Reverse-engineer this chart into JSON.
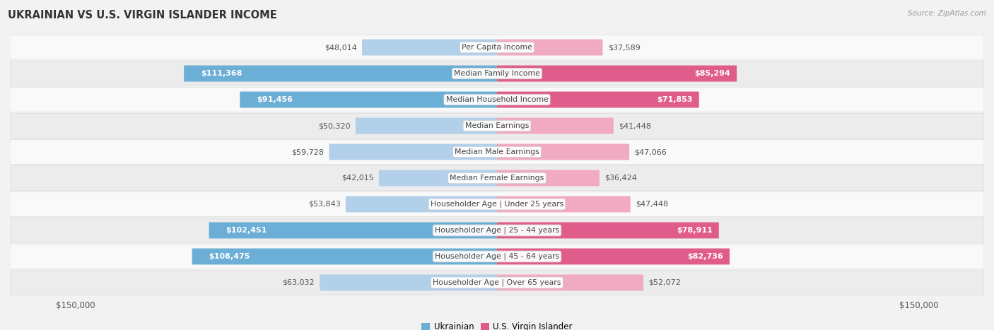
{
  "title": "UKRAINIAN VS U.S. VIRGIN ISLANDER INCOME",
  "source": "Source: ZipAtlas.com",
  "categories": [
    "Per Capita Income",
    "Median Family Income",
    "Median Household Income",
    "Median Earnings",
    "Median Male Earnings",
    "Median Female Earnings",
    "Householder Age | Under 25 years",
    "Householder Age | 25 - 44 years",
    "Householder Age | 45 - 64 years",
    "Householder Age | Over 65 years"
  ],
  "ukrainian_values": [
    48014,
    111368,
    91456,
    50320,
    59728,
    42015,
    53843,
    102451,
    108475,
    63032
  ],
  "virgin_islander_values": [
    37589,
    85294,
    71853,
    41448,
    47066,
    36424,
    47448,
    78911,
    82736,
    52072
  ],
  "ukrainian_labels": [
    "$48,014",
    "$111,368",
    "$91,456",
    "$50,320",
    "$59,728",
    "$42,015",
    "$53,843",
    "$102,451",
    "$108,475",
    "$63,032"
  ],
  "virgin_islander_labels": [
    "$37,589",
    "$85,294",
    "$71,853",
    "$41,448",
    "$47,066",
    "$36,424",
    "$47,448",
    "$78,911",
    "$82,736",
    "$52,072"
  ],
  "max_value": 150000,
  "ukrainian_color_dark": "#6baed6",
  "ukrainian_color_light": "#b3d0ea",
  "virgin_islander_color_dark": "#e05c8a",
  "virgin_islander_color_light": "#f0aac2",
  "bg_color": "#f2f2f2",
  "row_bg_even": "#f9f9f9",
  "row_bg_odd": "#ececec",
  "label_outside_color": "#555555",
  "label_inside_color": "#ffffff",
  "inside_label_threshold": 70000,
  "center_label_color": "#444444",
  "legend_ukr": "Ukrainian",
  "legend_vi": "U.S. Virgin Islander"
}
